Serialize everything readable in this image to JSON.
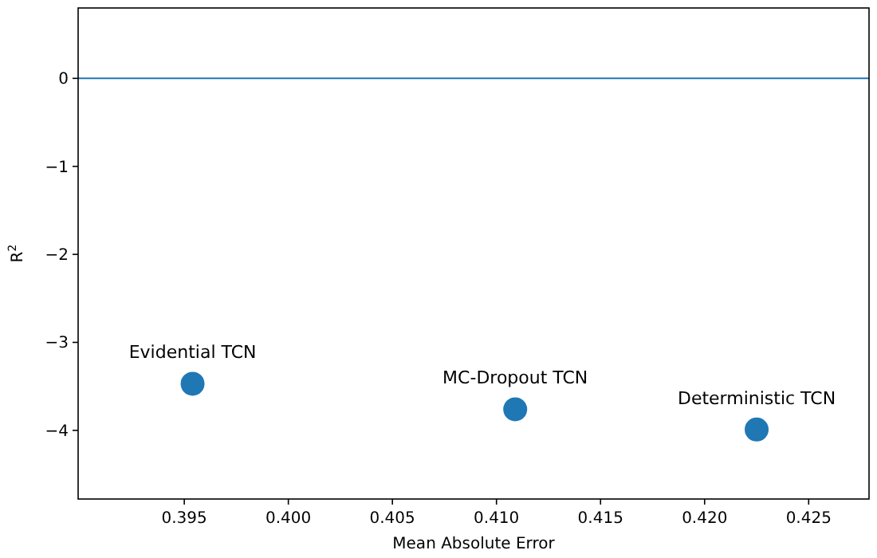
{
  "chart_data": {
    "type": "scatter",
    "xlabel": "Mean Absolute Error",
    "ylabel": "R$^{2}$",
    "x": [
      0.3954,
      0.4109,
      0.4225
    ],
    "series": [
      {
        "color": "#1f77b4",
        "values": [
          -3.47,
          -3.76,
          -3.99
        ]
      }
    ],
    "marker": "circle",
    "xlim": [
      0.3899,
      0.4279
    ],
    "xticks": [
      {
        "value": 0.395,
        "label": "0.395"
      },
      {
        "value": 0.4,
        "label": "0.400"
      },
      {
        "value": 0.405,
        "label": "0.405"
      },
      {
        "value": 0.41,
        "label": "0.410"
      },
      {
        "value": 0.415,
        "label": "0.415"
      },
      {
        "value": 0.42,
        "label": "0.420"
      },
      {
        "value": 0.425,
        "label": "0.425"
      }
    ],
    "ylim": [
      -4.78,
      0.8
    ],
    "yticks": [
      {
        "value": 0,
        "label": "0"
      },
      {
        "value": -1,
        "label": "−1"
      },
      {
        "value": -2,
        "label": "−2"
      },
      {
        "value": -3,
        "label": "−3"
      },
      {
        "value": -4,
        "label": "−4"
      }
    ],
    "ref_lines": [
      {
        "axis": "y",
        "value": 0,
        "color": "#1f77b4"
      }
    ],
    "annotations": [
      {
        "text": "Evidential TCN",
        "x": 0.3954,
        "y": -3.47
      },
      {
        "text": "MC-Dropout TCN",
        "x": 0.4109,
        "y": -3.76
      },
      {
        "text": "Deterministic TCN",
        "x": 0.4225,
        "y": -3.99
      }
    ]
  }
}
